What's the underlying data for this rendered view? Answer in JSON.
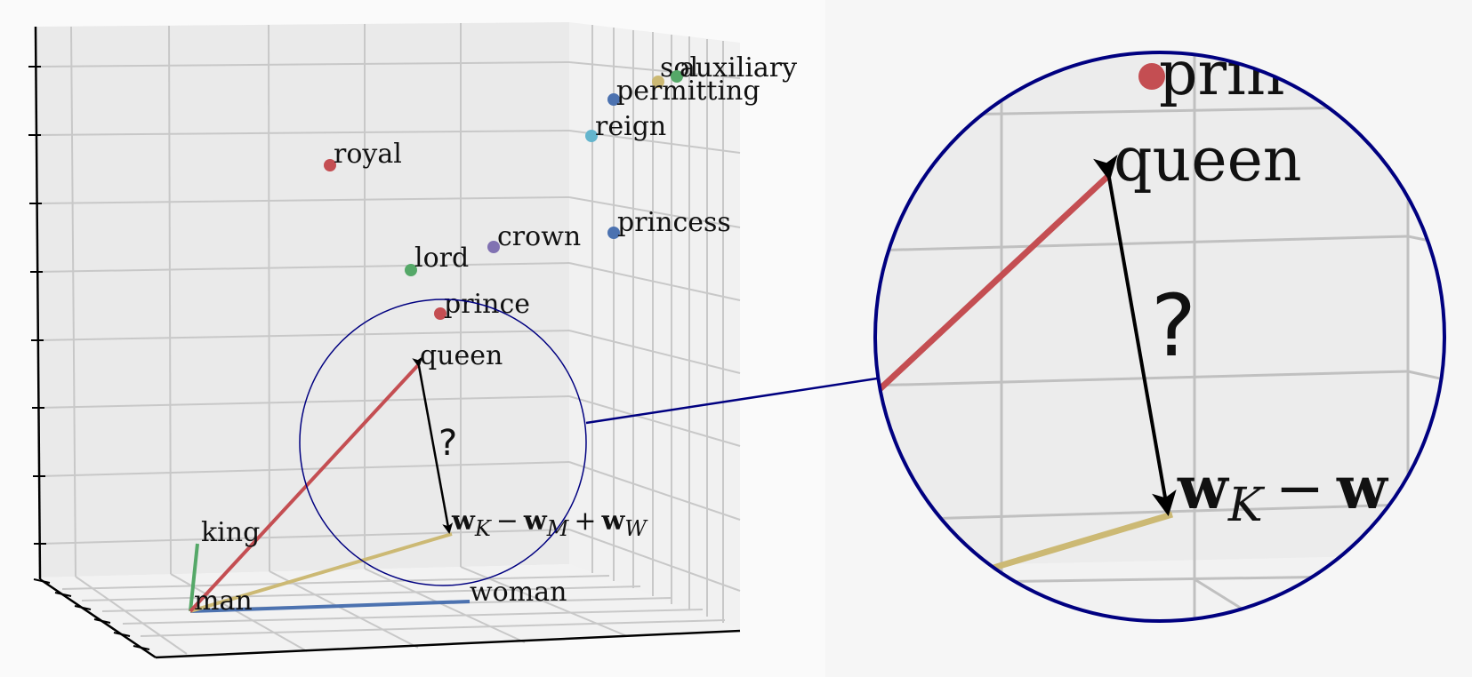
{
  "colors": {
    "red": "#c44e52",
    "blue": "#4c72b0",
    "green": "#55a868",
    "purple": "#8172b2",
    "cyan": "#64b5cd",
    "gold": "#ccb974",
    "navy": "#000080"
  },
  "main": {
    "words": [
      {
        "key": "sol",
        "label": "sol",
        "color": "gold"
      },
      {
        "key": "auxiliary",
        "label": "auxiliary",
        "color": "green"
      },
      {
        "key": "permitting",
        "label": "permitting",
        "color": "blue"
      },
      {
        "key": "reign",
        "label": "reign",
        "color": "cyan"
      },
      {
        "key": "royal",
        "label": "royal",
        "color": "red"
      },
      {
        "key": "princess",
        "label": "princess",
        "color": "blue"
      },
      {
        "key": "crown",
        "label": "crown",
        "color": "purple"
      },
      {
        "key": "lord",
        "label": "lord",
        "color": "green"
      },
      {
        "key": "prince",
        "label": "prince",
        "color": "red"
      }
    ],
    "queen": "queen",
    "king": "king",
    "man": "man",
    "woman": "woman",
    "question": "?",
    "formula": {
      "w1": "w",
      "sub1": "K",
      "op1": "−",
      "w2": "w",
      "sub2": "M",
      "op2": "+",
      "w3": "w",
      "sub3": "W"
    }
  },
  "zoom": {
    "top_word_fragment": "prin",
    "queen": "queen",
    "question": "?",
    "formula_fragment": {
      "w1": "w",
      "sub1": "K",
      "op": "−",
      "w2": "w"
    }
  }
}
